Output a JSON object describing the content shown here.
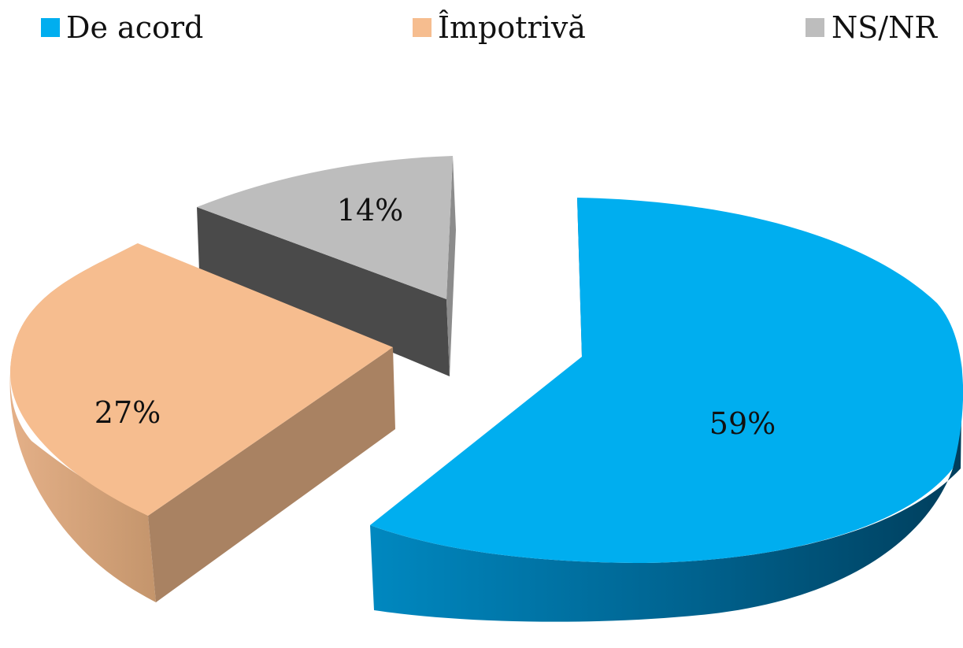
{
  "chart_data": {
    "type": "pie",
    "style": "3d-exploded",
    "title": "",
    "legend_position": "top",
    "slices": [
      {
        "label": "De acord",
        "value": 59,
        "display": "59%",
        "color": "#00aeef"
      },
      {
        "label": "Împotrivă",
        "value": 27,
        "display": "27%",
        "color": "#f6bd8f"
      },
      {
        "label": "NS/NR",
        "value": 14,
        "display": "14%",
        "color": "#bdbdbd"
      }
    ]
  }
}
